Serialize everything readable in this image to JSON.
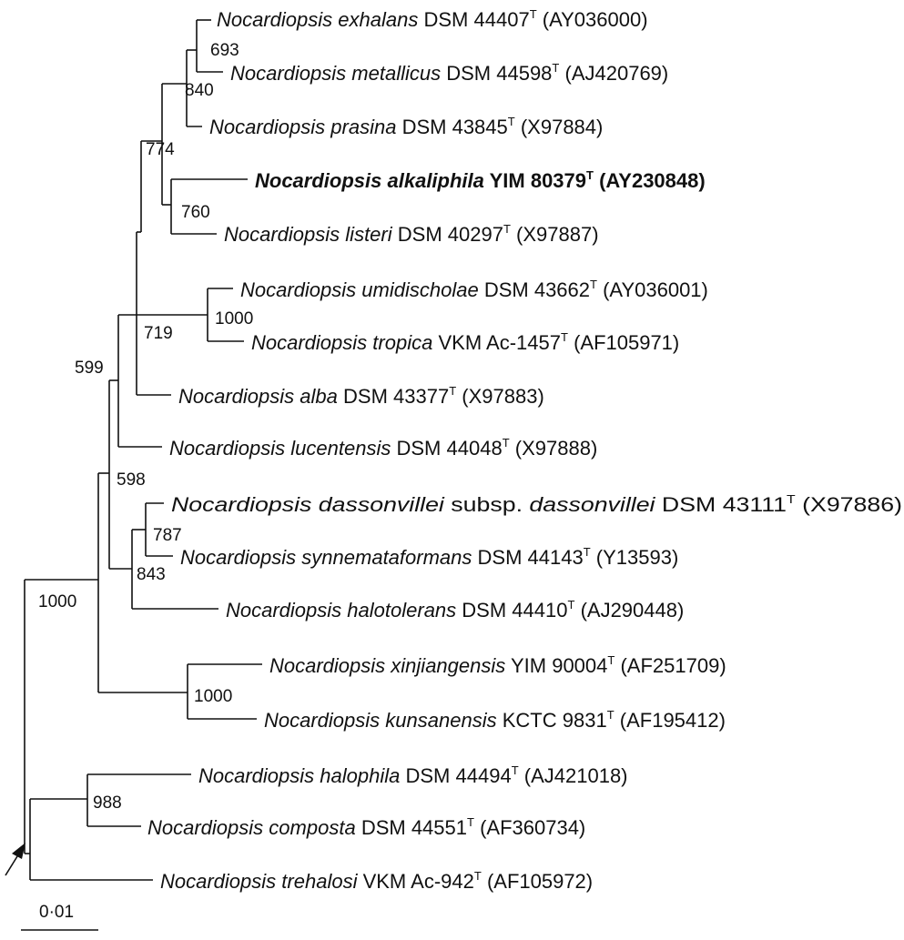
{
  "tree": {
    "taxa": [
      {
        "id": "exhalans",
        "genus": "Nocardiopsis",
        "epithet": "exhalans",
        "strain": "DSM 44407",
        "type_mark": "T",
        "accession": "(AY036000)",
        "bold": false
      },
      {
        "id": "metallicus",
        "genus": "Nocardiopsis",
        "epithet": "metallicus",
        "strain": "DSM 44598",
        "type_mark": "T",
        "accession": "(AJ420769)",
        "bold": false
      },
      {
        "id": "prasina",
        "genus": "Nocardiopsis",
        "epithet": "prasina",
        "strain": "DSM 43845",
        "type_mark": "T",
        "accession": "(X97884)",
        "bold": false
      },
      {
        "id": "alkaliphila",
        "genus": "Nocardiopsis",
        "epithet": "alkaliphila",
        "strain": "YIM 80379",
        "type_mark": "T",
        "accession": "(AY230848)",
        "bold": true
      },
      {
        "id": "listeri",
        "genus": "Nocardiopsis",
        "epithet": "listeri",
        "strain": "DSM 40297",
        "type_mark": "T",
        "accession": "(X97887)",
        "bold": false
      },
      {
        "id": "umidischolae",
        "genus": "Nocardiopsis",
        "epithet": "umidischolae",
        "strain": "DSM 43662",
        "type_mark": "T",
        "accession": "(AY036001)",
        "bold": false
      },
      {
        "id": "tropica",
        "genus": "Nocardiopsis",
        "epithet": "tropica",
        "strain": "VKM Ac-1457",
        "type_mark": "T",
        "accession": "(AF105971)",
        "bold": false
      },
      {
        "id": "alba",
        "genus": "Nocardiopsis",
        "epithet": "alba",
        "strain": "DSM 43377",
        "type_mark": "T",
        "accession": "(X97883)",
        "bold": false
      },
      {
        "id": "lucentensis",
        "genus": "Nocardiopsis",
        "epithet": "lucentensis",
        "strain": "DSM 44048",
        "type_mark": "T",
        "accession": "(X97888)",
        "bold": false
      },
      {
        "id": "dassonvillei",
        "genus": "Nocardiopsis",
        "epithet": "dassonvillei",
        "subsp_word": "subsp.",
        "subsp": "dassonvillei",
        "strain": "DSM 43111",
        "type_mark": "T",
        "accession": "(X97886)",
        "bold": false
      },
      {
        "id": "synnemataformans",
        "genus": "Nocardiopsis",
        "epithet": "synnemataformans",
        "strain": "DSM 44143",
        "type_mark": "T",
        "accession": "(Y13593)",
        "bold": false
      },
      {
        "id": "halotolerans",
        "genus": "Nocardiopsis",
        "epithet": "halotolerans",
        "strain": "DSM 44410",
        "type_mark": "T",
        "accession": "(AJ290448)",
        "bold": false
      },
      {
        "id": "xinjiangensis",
        "genus": "Nocardiopsis",
        "epithet": "xinjiangensis",
        "strain": "YIM 90004",
        "type_mark": "T",
        "accession": "(AF251709)",
        "bold": false
      },
      {
        "id": "kunsanensis",
        "genus": "Nocardiopsis",
        "epithet": "kunsanensis",
        "strain": "KCTC 9831",
        "type_mark": "T",
        "accession": "(AF195412)",
        "bold": false
      },
      {
        "id": "halophila",
        "genus": "Nocardiopsis",
        "epithet": "halophila",
        "strain": "DSM 44494",
        "type_mark": "T",
        "accession": "(AJ421018)",
        "bold": false
      },
      {
        "id": "composta",
        "genus": "Nocardiopsis",
        "epithet": "composta",
        "strain": "DSM 44551",
        "type_mark": "T",
        "accession": "(AF360734)",
        "bold": false
      },
      {
        "id": "trehalosi",
        "genus": "Nocardiopsis",
        "epithet": "trehalosi",
        "strain": "VKM Ac-942",
        "type_mark": "T",
        "accession": "(AF105972)",
        "bold": false
      }
    ],
    "bootstrap": {
      "exhalans_metallicus": "693",
      "exhalans_prasina": "840",
      "alkaliphila_listeri": "760",
      "upper_group": "774",
      "umidischolae_tropica": "1000",
      "core_group": "719",
      "core_lucentensis": "599",
      "dassonvillei_synnemataformans": "787",
      "dassonvillei_halotolerans": "843",
      "big_group": "598",
      "xinjiangensis_kunsanensis": "1000",
      "ingroup": "1000",
      "halophila_composta": "988"
    },
    "scale_bar": {
      "label": "0·01",
      "value": 0.01
    },
    "root_marker": "arrow"
  }
}
